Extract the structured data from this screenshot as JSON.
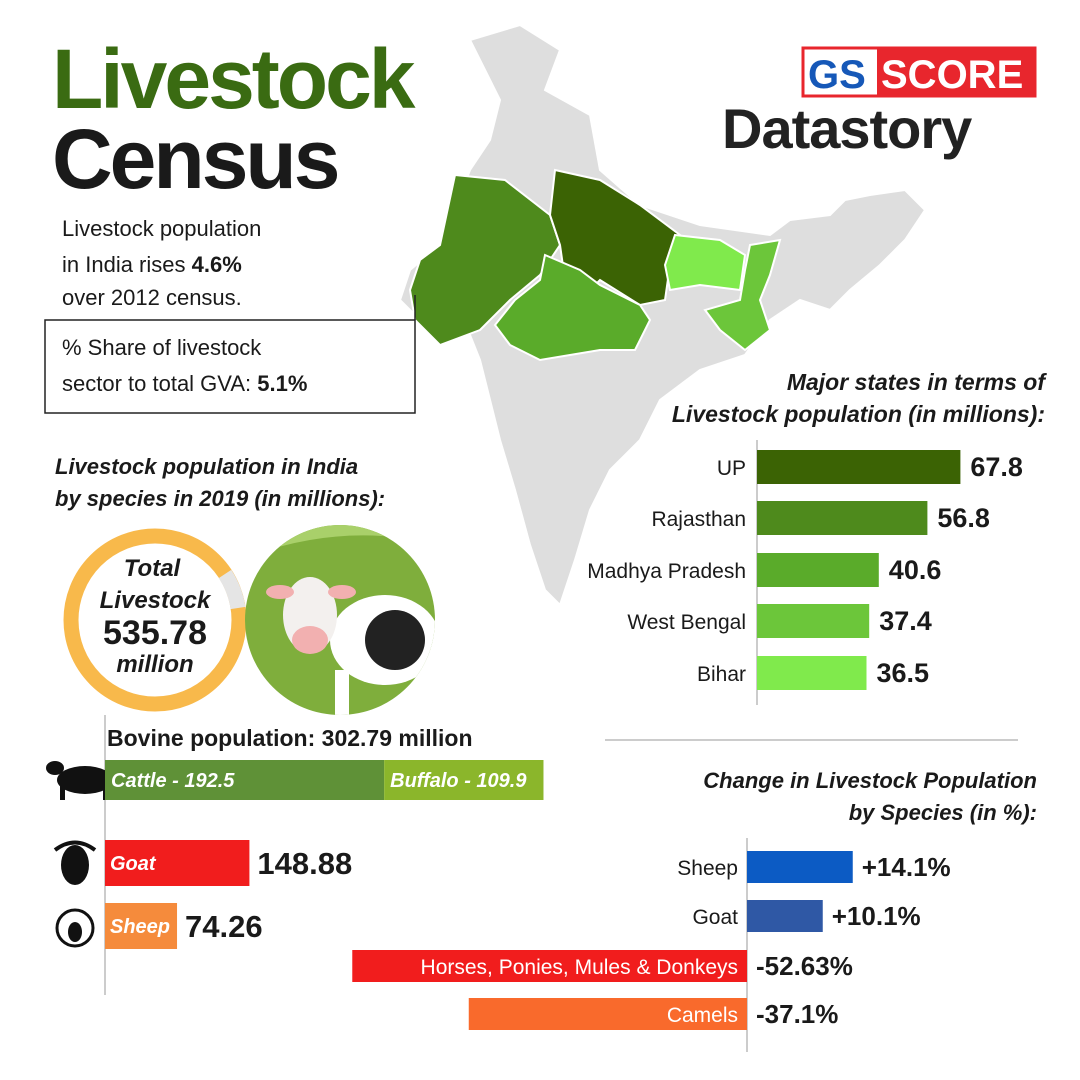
{
  "header": {
    "title_line1": "Livestock",
    "title_line2": "Census",
    "brand_left": "GS",
    "brand_right": "SCORE",
    "brand_sub": "Datastory"
  },
  "facts": {
    "growth": [
      "Livestock population",
      "in India rises",
      "4.6%",
      "over 2012 census."
    ],
    "gva": [
      "% Share of livestock",
      "sector to total GVA:",
      "5.1%"
    ]
  },
  "species_heading": [
    "Livestock population in India",
    "by species in 2019 (in millions):"
  ],
  "total": {
    "label": [
      "Total",
      "Livestock"
    ],
    "value": 535.78,
    "unit": "million"
  },
  "chart_data": [
    {
      "type": "hbar",
      "title": [
        "Major states in terms of",
        "Livestock population (in millions):"
      ],
      "categories": [
        "UP",
        "Rajasthan",
        "Madhya Pradesh",
        "West Bengal",
        "Bihar"
      ],
      "values": [
        67.8,
        56.8,
        40.6,
        37.4,
        36.5
      ],
      "colors": [
        "#3b6304",
        "#4e8a1c",
        "#5aab2a",
        "#6cc63a",
        "#80ea4c"
      ]
    },
    {
      "type": "stacked_hbar",
      "title": "Bovine population: 302.79 million",
      "series": [
        {
          "color": "#5f9137",
          "values": [
            192.5
          ],
          "value_labels": [
            "Cattle - 192.5"
          ]
        },
        {
          "color": "#8bb62b",
          "values": [
            109.9
          ],
          "value_labels": [
            "Buffalo - 109.9"
          ]
        }
      ]
    },
    {
      "type": "hbar_inside",
      "categories": [
        "Goat",
        "Sheep"
      ],
      "values": [
        148.88,
        74.26
      ],
      "colors": [
        "#f11d1d",
        "#f58b3c"
      ]
    },
    {
      "type": "diverging_bar",
      "title": [
        "Change in Livestock Population",
        "by Species (in %):"
      ],
      "categories": [
        "Sheep",
        "Goat",
        "Horses, Ponies, Mules & Donkeys",
        "Camels"
      ],
      "values": [
        14.1,
        10.1,
        -52.63,
        -37.1
      ],
      "value_labels": [
        "+14.1%",
        "+10.1%",
        "-52.63%",
        "-37.1%"
      ],
      "colors": [
        "#0c5bc4",
        "#2f58a5",
        "#f11d1d",
        "#f96a2c"
      ]
    }
  ]
}
